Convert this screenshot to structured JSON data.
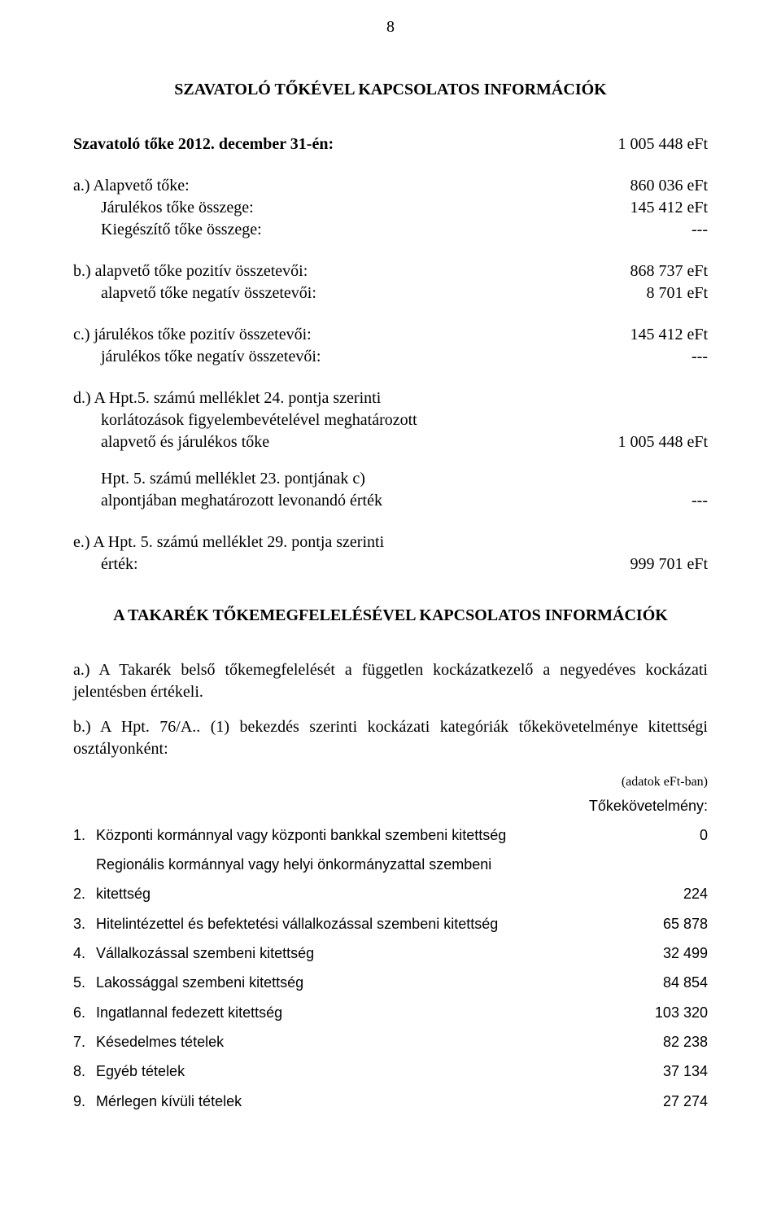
{
  "page_number": "8",
  "section1_title": "SZAVATOLÓ TŐKÉVEL KAPCSOLATOS INFORMÁCIÓK",
  "szavatolo": {
    "label": "Szavatoló tőke 2012. december 31-én:",
    "value": "1 005 448  eFt"
  },
  "a": {
    "line1_label": "a.) Alapvető tőke:",
    "line1_value": "860 036  eFt",
    "line2_label": "Járulékos tőke összege:",
    "line2_value": "145 412  eFt",
    "line3_label": "Kiegészítő tőke összege:",
    "line3_value": "---"
  },
  "b": {
    "line1_label": "b.) alapvető tőke pozitív összetevői:",
    "line1_value": "868 737  eFt",
    "line2_label": "alapvető tőke negatív összetevői:",
    "line2_value": "8 701  eFt"
  },
  "c": {
    "line1_label": "c.) járulékos tőke pozitív összetevői:",
    "line1_value": "145 412  eFt",
    "line2_label": "járulékos tőke negatív összetevői:",
    "line2_value": "---"
  },
  "d": {
    "line1": "d.) A Hpt.5. számú melléklet 24. pontja szerinti",
    "line2": "korlátozások figyelembevételével meghatározott",
    "line3_label": "alapvető és járulékos tőke",
    "line3_value": "1 005 448  eFt",
    "line4": "Hpt. 5. számú melléklet 23. pontjának c)",
    "line5_label": "alpontjában meghatározott levonandó érték",
    "line5_value": "---"
  },
  "e": {
    "line1": "e.) A Hpt. 5. számú melléklet 29. pontja szerinti",
    "line2_label": "érték:",
    "line2_value": "999 701  eFt"
  },
  "section2_title": "A TAKARÉK TŐKEMEGFELELÉSÉVEL KAPCSOLATOS INFORMÁCIÓK",
  "para_a": "a.) A Takarék belső tőkemegfelelését a független kockázatkezelő a negyedéves kockázati jelentésben értékeli.",
  "para_b": "b.) A Hpt. 76/A.. (1) bekezdés szerinti kockázati kategóriák tőkekövetelménye kitettségi osztályonként:",
  "units_note": "(adatok eFt-ban)",
  "req_header": "Tőkekövetelmény:",
  "req_rows": [
    {
      "n": "1.",
      "t": "Központi kormánnyal vagy központi bankkal szembeni kitettség",
      "v": "0"
    },
    {
      "n": "2.",
      "t": "Regionális kormánnyal vagy helyi önkormányzattal szembeni kitettség",
      "v": "224"
    },
    {
      "n": "3.",
      "t": "Hitelintézettel és befektetési vállalkozással szembeni kitettség",
      "v": "65 878"
    },
    {
      "n": "4.",
      "t": "Vállalkozással szembeni kitettség",
      "v": "32 499"
    },
    {
      "n": "5.",
      "t": "Lakossággal szembeni kitettség",
      "v": "84 854"
    },
    {
      "n": "6.",
      "t": "Ingatlannal fedezett kitettség",
      "v": "103 320"
    },
    {
      "n": "7.",
      "t": "Késedelmes tételek",
      "v": "82 238"
    },
    {
      "n": "8.",
      "t": "Egyéb tételek",
      "v": "37 134"
    },
    {
      "n": "9.",
      "t": "Mérlegen kívüli tételek",
      "v": "27 274"
    }
  ]
}
